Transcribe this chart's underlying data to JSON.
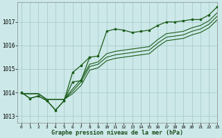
{
  "title": "Graphe pression niveau de la mer (hPa)",
  "bg_color": "#cce8e8",
  "grid_color": "#aacccc",
  "line_color": "#1a5c1a",
  "xlim": [
    -0.5,
    23
  ],
  "ylim": [
    1012.7,
    1017.85
  ],
  "yticks": [
    1013,
    1014,
    1015,
    1016,
    1017
  ],
  "xticks": [
    0,
    1,
    2,
    3,
    4,
    5,
    6,
    7,
    8,
    9,
    10,
    11,
    12,
    13,
    14,
    15,
    16,
    17,
    18,
    19,
    20,
    21,
    22,
    23
  ],
  "series_with_markers": {
    "x": [
      0,
      1,
      2,
      3,
      4,
      5,
      6,
      7,
      8,
      9,
      10,
      11,
      12,
      13,
      14,
      15,
      16,
      17,
      18,
      19,
      20,
      21,
      22,
      23
    ],
    "y": [
      1014.0,
      1013.75,
      1013.85,
      1013.65,
      1013.25,
      1013.65,
      1014.45,
      1014.5,
      1015.5,
      1015.55,
      1016.6,
      1016.7,
      1016.65,
      1016.55,
      1016.6,
      1016.65,
      1016.85,
      1017.0,
      1017.0,
      1017.05,
      1017.1,
      1017.1,
      1017.3,
      1017.65
    ]
  },
  "straight_lines": [
    {
      "x": [
        0,
        1,
        2,
        3,
        4,
        5,
        6,
        7,
        8,
        9,
        10,
        11,
        12,
        13,
        14,
        15,
        16,
        17,
        18,
        19,
        20,
        21,
        22,
        23
      ],
      "y": [
        1013.95,
        1013.95,
        1013.95,
        1013.7,
        1013.7,
        1013.7,
        1013.95,
        1014.3,
        1014.95,
        1015.05,
        1015.35,
        1015.45,
        1015.5,
        1015.55,
        1015.6,
        1015.65,
        1015.95,
        1016.2,
        1016.25,
        1016.3,
        1016.45,
        1016.55,
        1016.75,
        1017.1
      ]
    },
    {
      "x": [
        0,
        1,
        2,
        3,
        4,
        5,
        6,
        7,
        8,
        9,
        10,
        11,
        12,
        13,
        14,
        15,
        16,
        17,
        18,
        19,
        20,
        21,
        22,
        23
      ],
      "y": [
        1013.95,
        1013.95,
        1013.95,
        1013.7,
        1013.7,
        1013.7,
        1014.05,
        1014.45,
        1015.1,
        1015.2,
        1015.5,
        1015.6,
        1015.65,
        1015.7,
        1015.75,
        1015.8,
        1016.1,
        1016.35,
        1016.4,
        1016.45,
        1016.6,
        1016.7,
        1016.9,
        1017.25
      ]
    },
    {
      "x": [
        0,
        1,
        2,
        3,
        4,
        5,
        6,
        7,
        8,
        9,
        10,
        11,
        12,
        13,
        14,
        15,
        16,
        17,
        18,
        19,
        20,
        21,
        22,
        23
      ],
      "y": [
        1013.95,
        1013.95,
        1013.95,
        1013.7,
        1013.7,
        1013.7,
        1014.15,
        1014.55,
        1015.2,
        1015.3,
        1015.65,
        1015.75,
        1015.8,
        1015.85,
        1015.9,
        1015.95,
        1016.25,
        1016.5,
        1016.55,
        1016.6,
        1016.75,
        1016.85,
        1017.05,
        1017.4
      ]
    }
  ],
  "zigzag_line": {
    "x": [
      0,
      1,
      2,
      3,
      4,
      5,
      6,
      7,
      8
    ],
    "y": [
      1014.0,
      1013.75,
      1013.85,
      1013.65,
      1013.25,
      1013.65,
      1014.85,
      1015.15,
      1015.5
    ]
  }
}
